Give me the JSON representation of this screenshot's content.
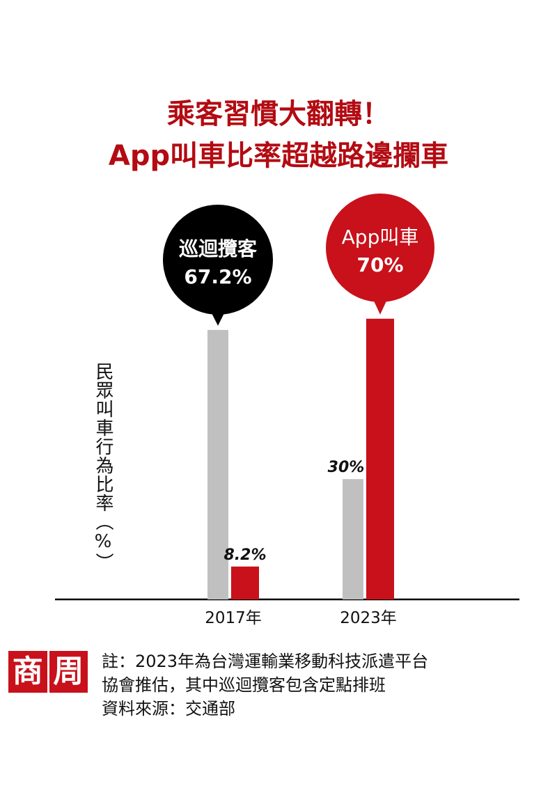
{
  "title_line1": "乘客習慣大翻轉！",
  "title_line2": "App叫車比率超越路邊攔車",
  "colors": {
    "title": "#b30b12",
    "app": "#c8111a",
    "street": "#c0c0c0",
    "street_bubble": "#000000"
  },
  "chart_data": {
    "type": "bar",
    "categories": [
      "2017年",
      "2023年"
    ],
    "ylabel": "民眾叫車行為比率（%）",
    "ylim": [
      0,
      70
    ],
    "series": [
      {
        "name": "巡迴攬客",
        "values": [
          67.2,
          30
        ],
        "data_labels": [
          "67.2%",
          "30%"
        ],
        "color": "#c0c0c0"
      },
      {
        "name": "App叫車",
        "values": [
          8.2,
          70
        ],
        "data_labels": [
          "8.2%",
          "70%"
        ],
        "color": "#c8111a"
      }
    ],
    "callouts": [
      {
        "label": "巡迴攬客",
        "value": "67.2%"
      },
      {
        "label": "App叫車",
        "value": "70%"
      }
    ]
  },
  "logo": {
    "char1": "商",
    "char2": "周"
  },
  "notes": [
    "註：2023年為台灣運輸業移動科技派遣平台",
    "協會推估，其中巡迴攬客包含定點排班",
    "資料來源：交通部"
  ]
}
